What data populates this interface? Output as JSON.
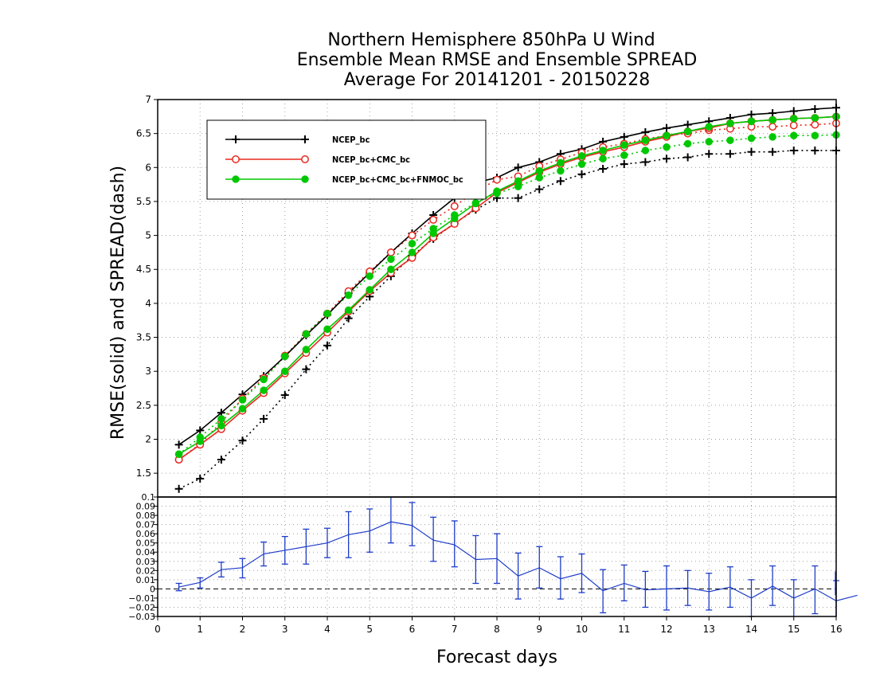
{
  "chart_data": [
    {
      "type": "line",
      "title": [
        "Northern Hemisphere 850hPa U Wind",
        "Ensemble Mean RMSE and Ensemble SPREAD",
        "Average For 20141201 - 20150228"
      ],
      "xlabel": "Forecast days",
      "ylabel": "RMSE(solid) and SPREAD(dash)",
      "xlim": [
        0,
        16
      ],
      "ylim": [
        1.15,
        7
      ],
      "yticks": [
        "1.5",
        "2",
        "2.5",
        "3",
        "3.5",
        "4",
        "4.5",
        "5",
        "5.5",
        "6",
        "6.5",
        "7"
      ],
      "grid": true,
      "legend_position": "top-left",
      "x": [
        0.5,
        1,
        1.5,
        2,
        2.5,
        3,
        3.5,
        4,
        4.5,
        5,
        5.5,
        6,
        6.5,
        7,
        7.5,
        8,
        8.5,
        9,
        9.5,
        10,
        10.5,
        11,
        11.5,
        12,
        12.5,
        13,
        13.5,
        14,
        14.5,
        15,
        15.5,
        16
      ],
      "series": [
        {
          "name": "NCEP_bc",
          "color": "#000000",
          "marker": "plus",
          "rmse": [
            1.92,
            2.13,
            2.39,
            2.66,
            2.93,
            3.22,
            3.53,
            3.83,
            4.15,
            4.45,
            4.75,
            5.03,
            5.3,
            5.55,
            5.78,
            5.85,
            6.0,
            6.08,
            6.2,
            6.27,
            6.38,
            6.45,
            6.52,
            6.58,
            6.63,
            6.68,
            6.73,
            6.78,
            6.8,
            6.83,
            6.86,
            6.88
          ],
          "spread": [
            1.27,
            1.42,
            1.7,
            1.98,
            2.3,
            2.65,
            3.03,
            3.38,
            3.78,
            4.1,
            4.4,
            4.7,
            4.95,
            5.18,
            5.38,
            5.55,
            5.55,
            5.68,
            5.8,
            5.9,
            5.98,
            6.05,
            6.08,
            6.13,
            6.15,
            6.2,
            6.2,
            6.23,
            6.23,
            6.25,
            6.25,
            6.25
          ]
        },
        {
          "name": "NCEP_bc+CMC_bc",
          "color": "#e8281e",
          "marker": "open-circle",
          "rmse": [
            1.7,
            1.92,
            2.15,
            2.42,
            2.68,
            2.97,
            3.27,
            3.57,
            3.88,
            4.18,
            4.45,
            4.67,
            4.97,
            5.17,
            5.4,
            5.63,
            5.78,
            5.93,
            6.05,
            6.15,
            6.23,
            6.3,
            6.38,
            6.45,
            6.53,
            6.58,
            6.65,
            6.68,
            6.7,
            6.72,
            6.73,
            6.75
          ],
          "spread": [
            1.7,
            1.93,
            2.25,
            2.6,
            2.9,
            3.23,
            3.55,
            3.85,
            4.18,
            4.47,
            4.75,
            5.0,
            5.23,
            5.43,
            5.65,
            5.82,
            5.87,
            6.02,
            6.12,
            6.22,
            6.3,
            6.35,
            6.42,
            6.47,
            6.5,
            6.55,
            6.57,
            6.6,
            6.6,
            6.62,
            6.63,
            6.65
          ]
        },
        {
          "name": "NCEP_bc+CMC_bc+FNMOC_bc",
          "color": "#00c800",
          "marker": "filled-circle",
          "rmse": [
            1.78,
            1.97,
            2.2,
            2.45,
            2.72,
            3.0,
            3.32,
            3.62,
            3.9,
            4.2,
            4.5,
            4.75,
            5.03,
            5.25,
            5.47,
            5.65,
            5.8,
            5.95,
            6.07,
            6.17,
            6.25,
            6.33,
            6.4,
            6.47,
            6.53,
            6.6,
            6.65,
            6.68,
            6.7,
            6.72,
            6.73,
            6.75
          ],
          "spread": [
            1.78,
            2.03,
            2.3,
            2.58,
            2.88,
            3.22,
            3.55,
            3.85,
            4.12,
            4.4,
            4.65,
            4.88,
            5.1,
            5.3,
            5.48,
            5.62,
            5.72,
            5.85,
            5.95,
            6.05,
            6.13,
            6.18,
            6.25,
            6.3,
            6.35,
            6.38,
            6.4,
            6.43,
            6.45,
            6.47,
            6.47,
            6.48
          ]
        }
      ]
    },
    {
      "type": "line",
      "xlabel": "Forecast days",
      "xlim": [
        0,
        16
      ],
      "ylim": [
        -0.03,
        0.1
      ],
      "xticks": [
        "0",
        "1",
        "2",
        "3",
        "4",
        "5",
        "6",
        "7",
        "8",
        "9",
        "10",
        "11",
        "12",
        "13",
        "14",
        "15",
        "16"
      ],
      "yticks": [
        "−0.03",
        "−0.02",
        "−0.01",
        "0",
        "0.01",
        "0.02",
        "0.03",
        "0.04",
        "0.05",
        "0.06",
        "0.07",
        "0.08",
        "0.09",
        "0.1"
      ],
      "grid": true,
      "zero_line": true,
      "x": [
        0.5,
        1,
        1.5,
        2,
        2.5,
        3,
        3.5,
        4,
        4.5,
        5,
        5.5,
        6,
        6.5,
        7,
        7.5,
        8,
        8.5,
        9,
        9.5,
        10,
        10.5,
        11,
        11.5,
        12,
        12.5,
        13,
        13.5,
        14,
        14.5,
        15,
        15.5,
        16
      ],
      "series": [
        {
          "color": "#1e3cc8",
          "values": [
            0.002,
            0.007,
            0.021,
            0.023,
            0.038,
            0.042,
            0.046,
            0.05,
            0.059,
            0.063,
            0.073,
            0.069,
            0.053,
            0.048,
            0.032,
            0.033,
            0.014,
            0.023,
            0.011,
            0.017,
            -0.002,
            0.006,
            -0.001,
            0.0,
            0.001,
            -0.003,
            0.002,
            -0.01,
            0.003,
            -0.01,
            0.0,
            -0.013
          ],
          "err_low": [
            -0.002,
            0.001,
            0.013,
            0.012,
            0.025,
            0.027,
            0.027,
            0.034,
            0.034,
            0.04,
            0.05,
            0.047,
            0.03,
            0.024,
            0.006,
            0.006,
            -0.011,
            0.001,
            -0.011,
            -0.004,
            -0.026,
            -0.013,
            -0.02,
            -0.023,
            -0.018,
            -0.023,
            -0.02,
            -0.03,
            -0.018,
            -0.031,
            -0.027,
            -0.035
          ],
          "err_high": [
            0.006,
            0.012,
            0.029,
            0.033,
            0.051,
            0.057,
            0.065,
            0.066,
            0.084,
            0.087,
            0.101,
            0.094,
            0.078,
            0.074,
            0.058,
            0.06,
            0.039,
            0.046,
            0.035,
            0.038,
            0.021,
            0.026,
            0.019,
            0.025,
            0.02,
            0.017,
            0.024,
            0.01,
            0.025,
            0.01,
            0.025,
            0.009
          ]
        }
      ],
      "extra_point": {
        "x": 16.5,
        "value": -0.007,
        "err_high": 0.019
      }
    }
  ]
}
